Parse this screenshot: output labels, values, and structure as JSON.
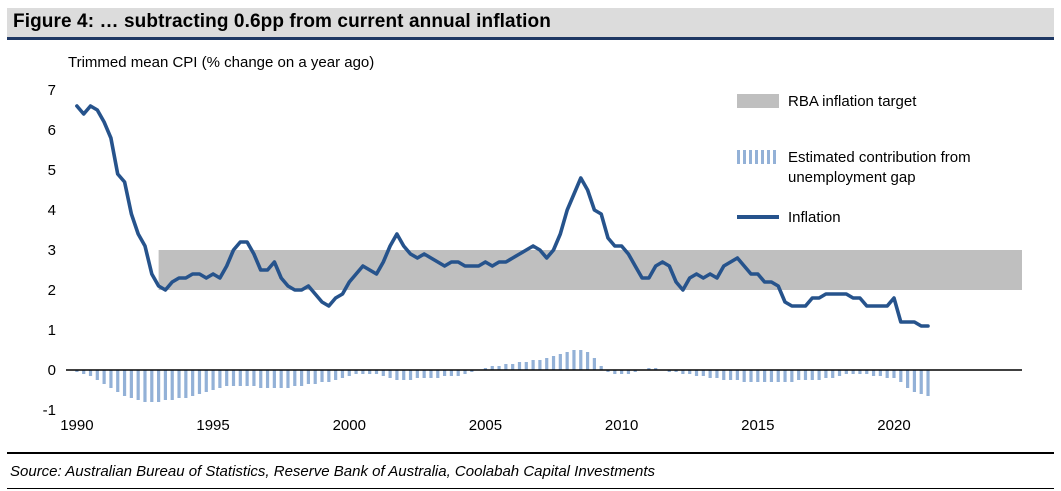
{
  "title": "Figure 4: … subtracting 0.6pp from current annual inflation",
  "axis_title": "Trimmed mean CPI (% change on a year ago)",
  "source": "Source: Australian Bureau of Statistics, Reserve Bank of Australia, Coolabah Capital Investments",
  "legend": {
    "band_label": "RBA inflation target",
    "bars_label": "Estimated contribution from unemployment gap",
    "line_label": "Inflation"
  },
  "colors": {
    "title_rule": "#1F3864",
    "title_bg": "#dcdcdc",
    "band": "#BFBFBF",
    "bars": "#93B1D7",
    "line": "#26538C",
    "axis": "#000000"
  },
  "chart_data": {
    "type": "line+bar",
    "title": "Figure 4: … subtracting 0.6pp from current annual inflation",
    "ylabel": "Trimmed mean CPI (% change on a year ago)",
    "xlabel": "",
    "ylim": [
      -1,
      7
    ],
    "yticks": [
      7,
      6,
      5,
      4,
      3,
      2,
      1,
      0,
      -1
    ],
    "xlim": [
      1989.6,
      2024.7
    ],
    "xticks": [
      1990,
      1995,
      2000,
      2005,
      2010,
      2015,
      2020
    ],
    "grid": false,
    "legend_position": "top-right",
    "band": {
      "label": "RBA inflation target",
      "x_from": 1993,
      "x_to": 2024.7,
      "y_low": 2,
      "y_high": 3
    },
    "x_start": 1990.0,
    "x_step": 0.25,
    "series": [
      {
        "name": "Inflation",
        "type": "line",
        "values": [
          6.6,
          6.4,
          6.6,
          6.5,
          6.2,
          5.8,
          4.9,
          4.7,
          3.9,
          3.4,
          3.1,
          2.4,
          2.1,
          2.0,
          2.2,
          2.3,
          2.3,
          2.4,
          2.4,
          2.3,
          2.4,
          2.3,
          2.6,
          3.0,
          3.2,
          3.2,
          2.9,
          2.5,
          2.5,
          2.7,
          2.3,
          2.1,
          2.0,
          2.0,
          2.1,
          1.9,
          1.7,
          1.6,
          1.8,
          1.9,
          2.2,
          2.4,
          2.6,
          2.5,
          2.4,
          2.7,
          3.1,
          3.4,
          3.1,
          2.9,
          2.8,
          2.9,
          2.8,
          2.7,
          2.6,
          2.7,
          2.7,
          2.6,
          2.6,
          2.6,
          2.7,
          2.6,
          2.7,
          2.7,
          2.8,
          2.9,
          3.0,
          3.1,
          3.0,
          2.8,
          3.0,
          3.4,
          4.0,
          4.4,
          4.8,
          4.5,
          4.0,
          3.9,
          3.3,
          3.1,
          3.1,
          2.9,
          2.6,
          2.3,
          2.3,
          2.6,
          2.7,
          2.6,
          2.2,
          2.0,
          2.3,
          2.4,
          2.3,
          2.4,
          2.3,
          2.6,
          2.7,
          2.8,
          2.6,
          2.4,
          2.4,
          2.2,
          2.2,
          2.1,
          1.7,
          1.6,
          1.6,
          1.6,
          1.8,
          1.8,
          1.9,
          1.9,
          1.9,
          1.9,
          1.8,
          1.8,
          1.6,
          1.6,
          1.6,
          1.6,
          1.8,
          1.2,
          1.2,
          1.2,
          1.1,
          1.1
        ]
      },
      {
        "name": "Estimated contribution from unemployment gap",
        "type": "bar",
        "values": [
          -0.05,
          -0.1,
          -0.15,
          -0.25,
          -0.35,
          -0.45,
          -0.55,
          -0.65,
          -0.7,
          -0.75,
          -0.8,
          -0.8,
          -0.8,
          -0.75,
          -0.75,
          -0.7,
          -0.7,
          -0.65,
          -0.6,
          -0.55,
          -0.5,
          -0.45,
          -0.4,
          -0.4,
          -0.4,
          -0.4,
          -0.4,
          -0.45,
          -0.45,
          -0.45,
          -0.45,
          -0.45,
          -0.4,
          -0.4,
          -0.35,
          -0.35,
          -0.3,
          -0.3,
          -0.25,
          -0.2,
          -0.15,
          -0.1,
          -0.1,
          -0.1,
          -0.1,
          -0.15,
          -0.2,
          -0.25,
          -0.25,
          -0.25,
          -0.2,
          -0.2,
          -0.2,
          -0.2,
          -0.15,
          -0.15,
          -0.15,
          -0.1,
          -0.05,
          0.0,
          0.05,
          0.1,
          0.1,
          0.15,
          0.15,
          0.2,
          0.2,
          0.25,
          0.25,
          0.3,
          0.35,
          0.4,
          0.45,
          0.5,
          0.5,
          0.45,
          0.3,
          0.1,
          -0.05,
          -0.1,
          -0.1,
          -0.1,
          -0.05,
          0.0,
          0.05,
          0.05,
          0.0,
          -0.05,
          -0.05,
          -0.1,
          -0.1,
          -0.15,
          -0.15,
          -0.2,
          -0.2,
          -0.25,
          -0.25,
          -0.25,
          -0.3,
          -0.3,
          -0.3,
          -0.3,
          -0.3,
          -0.3,
          -0.3,
          -0.3,
          -0.25,
          -0.25,
          -0.25,
          -0.25,
          -0.2,
          -0.2,
          -0.15,
          -0.1,
          -0.1,
          -0.1,
          -0.1,
          -0.15,
          -0.15,
          -0.2,
          -0.2,
          -0.3,
          -0.45,
          -0.55,
          -0.6,
          -0.65
        ]
      }
    ]
  }
}
